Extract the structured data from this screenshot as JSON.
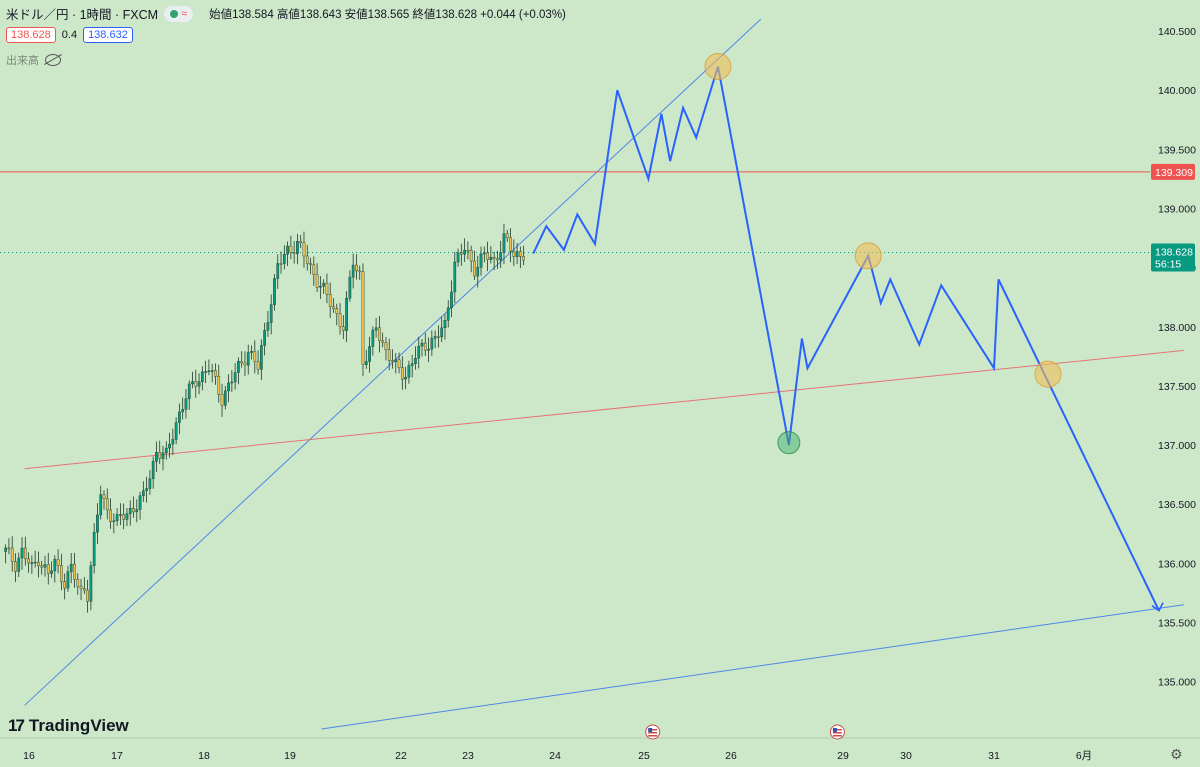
{
  "header": {
    "symbol": "米ドル／円 · 1時間 · FXCM",
    "approx_icon": "≈",
    "ohlc_text": "始値138.584 高値138.643 安値138.565 終値138.628 +0.044 (+0.03%)"
  },
  "price_boxes": {
    "bid": "138.628",
    "spread": "0.4",
    "ask": "138.632"
  },
  "volume_label": "出来高",
  "volume_hidden_icon": "eye-slash-icon",
  "brand": "TradingView",
  "settings_icon": "gear-icon",
  "colors": {
    "background": "#cde8c9",
    "bull": "#089981",
    "bear": "#f2c14e",
    "forecast": "#2962ff",
    "red_line": "#ef5350",
    "last_price": "#089981"
  },
  "chart_data": {
    "type": "candlestick",
    "symbol": "USDJPY",
    "timeframe": "1h",
    "y_axis": {
      "range": [
        134.6,
        140.6
      ],
      "ticks": [
        "140.500",
        "140.000",
        "139.500",
        "139.000",
        "138.500",
        "138.000",
        "137.500",
        "137.000",
        "136.500",
        "136.000",
        "135.500",
        "135.000"
      ]
    },
    "x_axis": {
      "ticks": [
        {
          "label": "16",
          "day": 16
        },
        {
          "label": "17",
          "day": 17
        },
        {
          "label": "18",
          "day": 18
        },
        {
          "label": "19",
          "day": 19
        },
        {
          "label": "22",
          "day": 22
        },
        {
          "label": "23",
          "day": 23
        },
        {
          "label": "24",
          "day": 24
        },
        {
          "label": "25",
          "day": 25
        },
        {
          "label": "26",
          "day": 26
        },
        {
          "label": "29",
          "day": 29
        },
        {
          "label": "30",
          "day": 30
        },
        {
          "label": "31",
          "day": 31
        },
        {
          "label": "6月",
          "day": 32
        }
      ]
    },
    "horizontal_line": {
      "price": 139.309,
      "label": "139.309"
    },
    "last_price": {
      "price": 138.628,
      "label": "138.628",
      "countdown": "56:15"
    },
    "price_path": [
      {
        "t": 0,
        "p": 136.1
      },
      {
        "t": 3,
        "p": 136.0
      },
      {
        "t": 5,
        "p": 136.1
      },
      {
        "t": 8,
        "p": 135.95
      },
      {
        "t": 10,
        "p": 136.05
      },
      {
        "t": 13,
        "p": 135.9
      },
      {
        "t": 15,
        "p": 136.0
      },
      {
        "t": 18,
        "p": 135.85
      },
      {
        "t": 20,
        "p": 135.95
      },
      {
        "t": 22,
        "p": 135.8
      },
      {
        "t": 23,
        "p": 135.75
      },
      {
        "t": 24,
        "p": 135.8
      },
      {
        "t": 25,
        "p": 135.75
      },
      {
        "t": 27,
        "p": 136.2
      },
      {
        "t": 29,
        "p": 136.6
      },
      {
        "t": 31,
        "p": 136.45
      },
      {
        "t": 34,
        "p": 136.35
      },
      {
        "t": 38,
        "p": 136.45
      },
      {
        "t": 42,
        "p": 136.55
      },
      {
        "t": 46,
        "p": 136.95
      },
      {
        "t": 49,
        "p": 136.9
      },
      {
        "t": 52,
        "p": 137.2
      },
      {
        "t": 55,
        "p": 137.4
      },
      {
        "t": 58,
        "p": 137.55
      },
      {
        "t": 62,
        "p": 137.65
      },
      {
        "t": 66,
        "p": 137.4
      },
      {
        "t": 70,
        "p": 137.6
      },
      {
        "t": 74,
        "p": 137.8
      },
      {
        "t": 77,
        "p": 137.65
      },
      {
        "t": 80,
        "p": 138.1
      },
      {
        "t": 83,
        "p": 138.5
      },
      {
        "t": 86,
        "p": 138.65
      },
      {
        "t": 89,
        "p": 138.7
      },
      {
        "t": 92,
        "p": 138.55
      },
      {
        "t": 95,
        "p": 138.4
      },
      {
        "t": 98,
        "p": 138.25
      },
      {
        "t": 101,
        "p": 138.1
      },
      {
        "t": 103,
        "p": 138.0
      },
      {
        "t": 106,
        "p": 138.55
      },
      {
        "t": 108,
        "p": 138.45
      },
      {
        "t": 109,
        "p": 137.7
      },
      {
        "t": 111,
        "p": 137.8
      },
      {
        "t": 113,
        "p": 138.0
      },
      {
        "t": 116,
        "p": 137.8
      },
      {
        "t": 119,
        "p": 137.65
      },
      {
        "t": 122,
        "p": 137.6
      },
      {
        "t": 125,
        "p": 137.75
      },
      {
        "t": 128,
        "p": 137.85
      },
      {
        "t": 131,
        "p": 137.9
      },
      {
        "t": 134,
        "p": 138.0
      },
      {
        "t": 137,
        "p": 138.55
      },
      {
        "t": 140,
        "p": 138.65
      },
      {
        "t": 143,
        "p": 138.5
      },
      {
        "t": 146,
        "p": 138.6
      },
      {
        "t": 149,
        "p": 138.55
      },
      {
        "t": 152,
        "p": 138.75
      },
      {
        "t": 155,
        "p": 138.6
      },
      {
        "t": 158,
        "p": 138.628
      }
    ],
    "forecast_path": [
      {
        "day": 23.75,
        "price": 138.62
      },
      {
        "day": 23.9,
        "price": 138.85
      },
      {
        "day": 24.1,
        "price": 138.65
      },
      {
        "day": 24.25,
        "price": 138.95
      },
      {
        "day": 24.45,
        "price": 138.7
      },
      {
        "day": 24.7,
        "price": 140.0
      },
      {
        "day": 25.05,
        "price": 139.25
      },
      {
        "day": 25.2,
        "price": 139.8
      },
      {
        "day": 25.3,
        "price": 139.4
      },
      {
        "day": 25.45,
        "price": 139.85
      },
      {
        "day": 25.6,
        "price": 139.6
      },
      {
        "day": 25.85,
        "price": 140.2
      },
      {
        "day": 27.55,
        "price": 137.0
      },
      {
        "day": 27.9,
        "price": 137.9
      },
      {
        "day": 28.05,
        "price": 137.65
      },
      {
        "day": 29.4,
        "price": 138.6
      },
      {
        "day": 29.6,
        "price": 138.2
      },
      {
        "day": 29.75,
        "price": 138.4
      },
      {
        "day": 30.15,
        "price": 137.85
      },
      {
        "day": 30.4,
        "price": 138.35
      },
      {
        "day": 31.0,
        "price": 137.65
      },
      {
        "day": 31.05,
        "price": 138.4
      },
      {
        "day": 33.2,
        "price": 135.6
      }
    ],
    "markers": [
      {
        "day": 25.85,
        "price": 140.2,
        "type": "peak"
      },
      {
        "day": 29.4,
        "price": 138.6,
        "type": "peak"
      },
      {
        "day": 31.6,
        "price": 137.6,
        "type": "peak"
      },
      {
        "day": 27.55,
        "price": 137.02,
        "type": "trough"
      }
    ],
    "trendlines": [
      {
        "color": "blue",
        "from": {
          "day": 15.95,
          "price": 134.8
        },
        "to": {
          "day": 26.8,
          "price": 140.6
        }
      },
      {
        "color": "red",
        "from": {
          "day": 15.95,
          "price": 136.8
        },
        "to": {
          "day": 33.75,
          "price": 137.8
        }
      },
      {
        "color": "blue",
        "from": {
          "day": 19.85,
          "price": 134.6
        },
        "to": {
          "day": 33.75,
          "price": 135.65
        }
      }
    ],
    "event_markers": [
      {
        "day": 25.1
      },
      {
        "day": 28.85
      }
    ]
  }
}
